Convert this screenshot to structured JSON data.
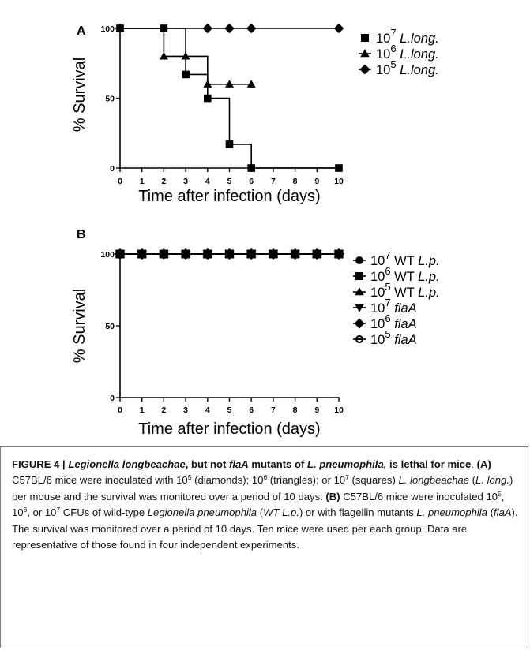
{
  "colors": {
    "series": "#000000",
    "background": "#ffffff",
    "caption_border": "#7a7a7a"
  },
  "chart_data": [
    {
      "type": "line",
      "panel_label": "A",
      "xlabel": "Time after infection (days)",
      "ylabel": "% Survival",
      "xlim": [
        0,
        10
      ],
      "ylim": [
        0,
        100
      ],
      "x_ticks": [
        0,
        1,
        2,
        3,
        4,
        5,
        6,
        7,
        8,
        9,
        10
      ],
      "y_ticks": [
        0,
        50,
        100
      ],
      "step": true,
      "grid": false,
      "legend_position": "right",
      "series": [
        {
          "name": "10^7 L.long.",
          "legend_exp": "7",
          "legend_text": "L.long.",
          "marker": "square",
          "x": [
            0,
            2,
            3,
            4,
            5,
            6,
            10
          ],
          "y": [
            100,
            100,
            67,
            50,
            17,
            0,
            0
          ]
        },
        {
          "name": "10^6 L.long.",
          "legend_exp": "6",
          "legend_text": "L.long.",
          "marker": "triangle-up",
          "x": [
            0,
            2,
            3,
            4,
            5,
            6
          ],
          "y": [
            100,
            80,
            80,
            60,
            60,
            60
          ]
        },
        {
          "name": "10^5 L.long.",
          "legend_exp": "5",
          "legend_text": "L.long.",
          "marker": "diamond",
          "x": [
            0,
            4,
            5,
            6,
            10
          ],
          "y": [
            100,
            100,
            100,
            100,
            100
          ]
        }
      ]
    },
    {
      "type": "line",
      "panel_label": "B",
      "xlabel": "Time after infection (days)",
      "ylabel": "% Survival",
      "xlim": [
        0,
        10
      ],
      "ylim": [
        0,
        100
      ],
      "x_ticks": [
        0,
        1,
        2,
        3,
        4,
        5,
        6,
        7,
        8,
        9,
        10
      ],
      "y_ticks": [
        0,
        50,
        100
      ],
      "step": true,
      "grid": false,
      "legend_position": "right",
      "series": [
        {
          "name": "10^7 WT L.p.",
          "legend_exp": "7",
          "legend_text": "WT L.p.",
          "marker": "circle",
          "x": [
            0,
            1,
            2,
            3,
            4,
            5,
            6,
            7,
            8,
            9,
            10
          ],
          "y": [
            100,
            100,
            100,
            100,
            100,
            100,
            100,
            100,
            100,
            100,
            100
          ]
        },
        {
          "name": "10^6 WT L.p.",
          "legend_exp": "6",
          "legend_text": "WT L.p.",
          "marker": "square",
          "x": [
            0,
            1,
            2,
            3,
            4,
            5,
            6,
            7,
            8,
            9,
            10
          ],
          "y": [
            100,
            100,
            100,
            100,
            100,
            100,
            100,
            100,
            100,
            100,
            100
          ]
        },
        {
          "name": "10^5 WT L.p.",
          "legend_exp": "5",
          "legend_text": "WT L.p.",
          "marker": "triangle-up",
          "x": [
            0,
            1,
            2,
            3,
            4,
            5,
            6,
            7,
            8,
            9,
            10
          ],
          "y": [
            100,
            100,
            100,
            100,
            100,
            100,
            100,
            100,
            100,
            100,
            100
          ]
        },
        {
          "name": "10^7 flaA",
          "legend_exp": "7",
          "legend_text": "flaA",
          "marker": "triangle-down",
          "x": [
            0,
            1,
            2,
            3,
            4,
            5,
            6,
            7,
            8,
            9,
            10
          ],
          "y": [
            100,
            100,
            100,
            100,
            100,
            100,
            100,
            100,
            100,
            100,
            100
          ]
        },
        {
          "name": "10^6 flaA",
          "legend_exp": "6",
          "legend_text": "flaA",
          "marker": "diamond",
          "x": [
            0,
            1,
            2,
            3,
            4,
            5,
            6,
            7,
            8,
            9,
            10
          ],
          "y": [
            100,
            100,
            100,
            100,
            100,
            100,
            100,
            100,
            100,
            100,
            100
          ]
        },
        {
          "name": "10^5 flaA",
          "legend_exp": "5",
          "legend_text": "flaA",
          "marker": "circle-open",
          "x": [
            0,
            1,
            2,
            3,
            4,
            5,
            6,
            7,
            8,
            9,
            10
          ],
          "y": [
            100,
            100,
            100,
            100,
            100,
            100,
            100,
            100,
            100,
            100,
            100
          ]
        }
      ]
    }
  ],
  "caption": {
    "figure_label": "FIGURE 4 | ",
    "title_1": "Legionella longbeachae",
    "title_2": ", but not ",
    "title_3": "flaA",
    "title_4": " mutants of ",
    "title_5": "L. pneumophila,",
    "title_6": " is lethal for mice",
    "title_end": ".",
    "a_label": "(A)",
    "a_1": " C57BL/6 mice were inoculated with 10",
    "a_exp1": "5",
    "a_2": " (diamonds); 10",
    "a_exp2": "6",
    "a_3": " (triangles); or 10",
    "a_exp3": "7",
    "a_4": " (squares) ",
    "a_5": "L. longbeachae",
    "a_6": " (",
    "a_7": "L. long.",
    "a_8": ") per mouse and the survival was monitored over a period of 10 days. ",
    "b_label": "(B)",
    "b_1": " C57BL/6 mice were inoculated 10",
    "b_exp1": "5",
    "b_2": ", 10",
    "b_exp2": "6",
    "b_3": ", or 10",
    "b_exp3": "7",
    "b_4": " CFUs of wild-type ",
    "b_5": "Legionella pneumophila",
    "b_6": " (",
    "b_7": "WT L.p.",
    "b_8": ") or with flagellin mutants ",
    "b_9": "L. pneumophila",
    "b_10": " (",
    "b_11": "flaA",
    "b_12": "). The survival was monitored over a period of 10 days. Ten mice were used per each group. Data are representative of those found in four independent experiments."
  }
}
